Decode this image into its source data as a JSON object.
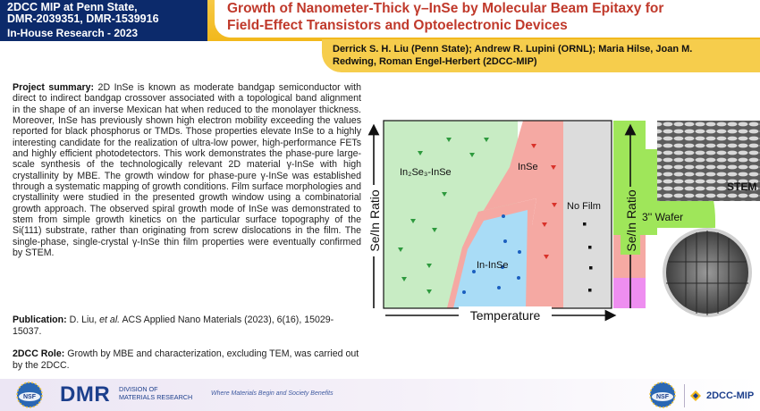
{
  "header": {
    "left_line1": "2DCC MIP at  Penn State,",
    "left_line2": "DMR-2039351, DMR-1539916",
    "left_line3": "In-House Research - 2023",
    "title_line1": "Growth of Nanometer-Thick γ–InSe by Molecular Beam Epitaxy for",
    "title_line2": "Field-Effect Transistors and Optoelectronic Devices"
  },
  "authors": {
    "line1": "Derrick S. H. Liu (Penn State); Andrew R. Lupini (ORNL); Maria Hilse, Joan M.",
    "line2": "Redwing, Roman Engel-Herbert (2DCC-MIP)"
  },
  "summary": {
    "label": "Project summary:",
    "text": "2D InSe is known as moderate bandgap semiconductor with direct to indirect bandgap crossover associated with a topological band alignment in the shape of an inverse Mexican hat when reduced to the monolayer thickness. Moreover, InSe has previously shown high electron mobility exceeding the values reported for black phosphorus or TMDs. Those properties elevate InSe to a highly interesting candidate for the realization of ultra-low power, high-performance FETs and highly efficient photodetectors. This work demonstrates the phase-pure large-scale synthesis of the technologically relevant 2D material γ-InSe with high crystallinity by MBE. The growth window for phase-pure γ-InSe was established through a systematic mapping of growth conditions. Film surface morphologies and crystallinity were studied in the presented growth window using a combinatorial growth approach. The observed spiral growth mode of InSe was demonstrated to stem from simple growth kinetics on the particular surface topography of the Si(111) substrate, rather than originating from screw dislocations in the film. The single-phase, single-crystal γ-InSe thin film properties were eventually confirmed by STEM."
  },
  "publication": {
    "label": "Publication:",
    "authors": "D. Liu,",
    "etal": "et al.",
    "rest": "ACS Applied Nano Materials (2023), 6(16), 15029-15037."
  },
  "role": {
    "label": "2DCC Role:",
    "text": "Growth by MBE and characterization, excluding TEM, was carried out by the 2DCC."
  },
  "figure": {
    "region_in2se3": "In₂Se₃-InSe",
    "region_inse": "InSe",
    "region_in_inse": "In-InSe",
    "region_nofilm": "No Film",
    "y_axis_label": "Se/In Ratio",
    "x_axis_label": "Temperature",
    "wafer_y_label": "Se/In Ratio",
    "wafer_label": "3'' Wafer",
    "stem_label": "STEM",
    "colors": {
      "green_region": "#c8ecc4",
      "red_region": "#f5a9a3",
      "blue_region": "#a9dcf6",
      "gray_region": "#dcdcdc",
      "marker_green": "#2e9a3e",
      "marker_red": "#d9322a",
      "marker_blue": "#1b5fbf",
      "marker_black": "#111111"
    }
  },
  "footer": {
    "dmr": "DMR",
    "division_line1": "DIVISION OF",
    "division_line2": "MATERIALS RESEARCH",
    "tagline": "Where Materials Begin and Society Benefits",
    "nsf_logo": "NSF",
    "mip": "2DCC-MIP"
  }
}
